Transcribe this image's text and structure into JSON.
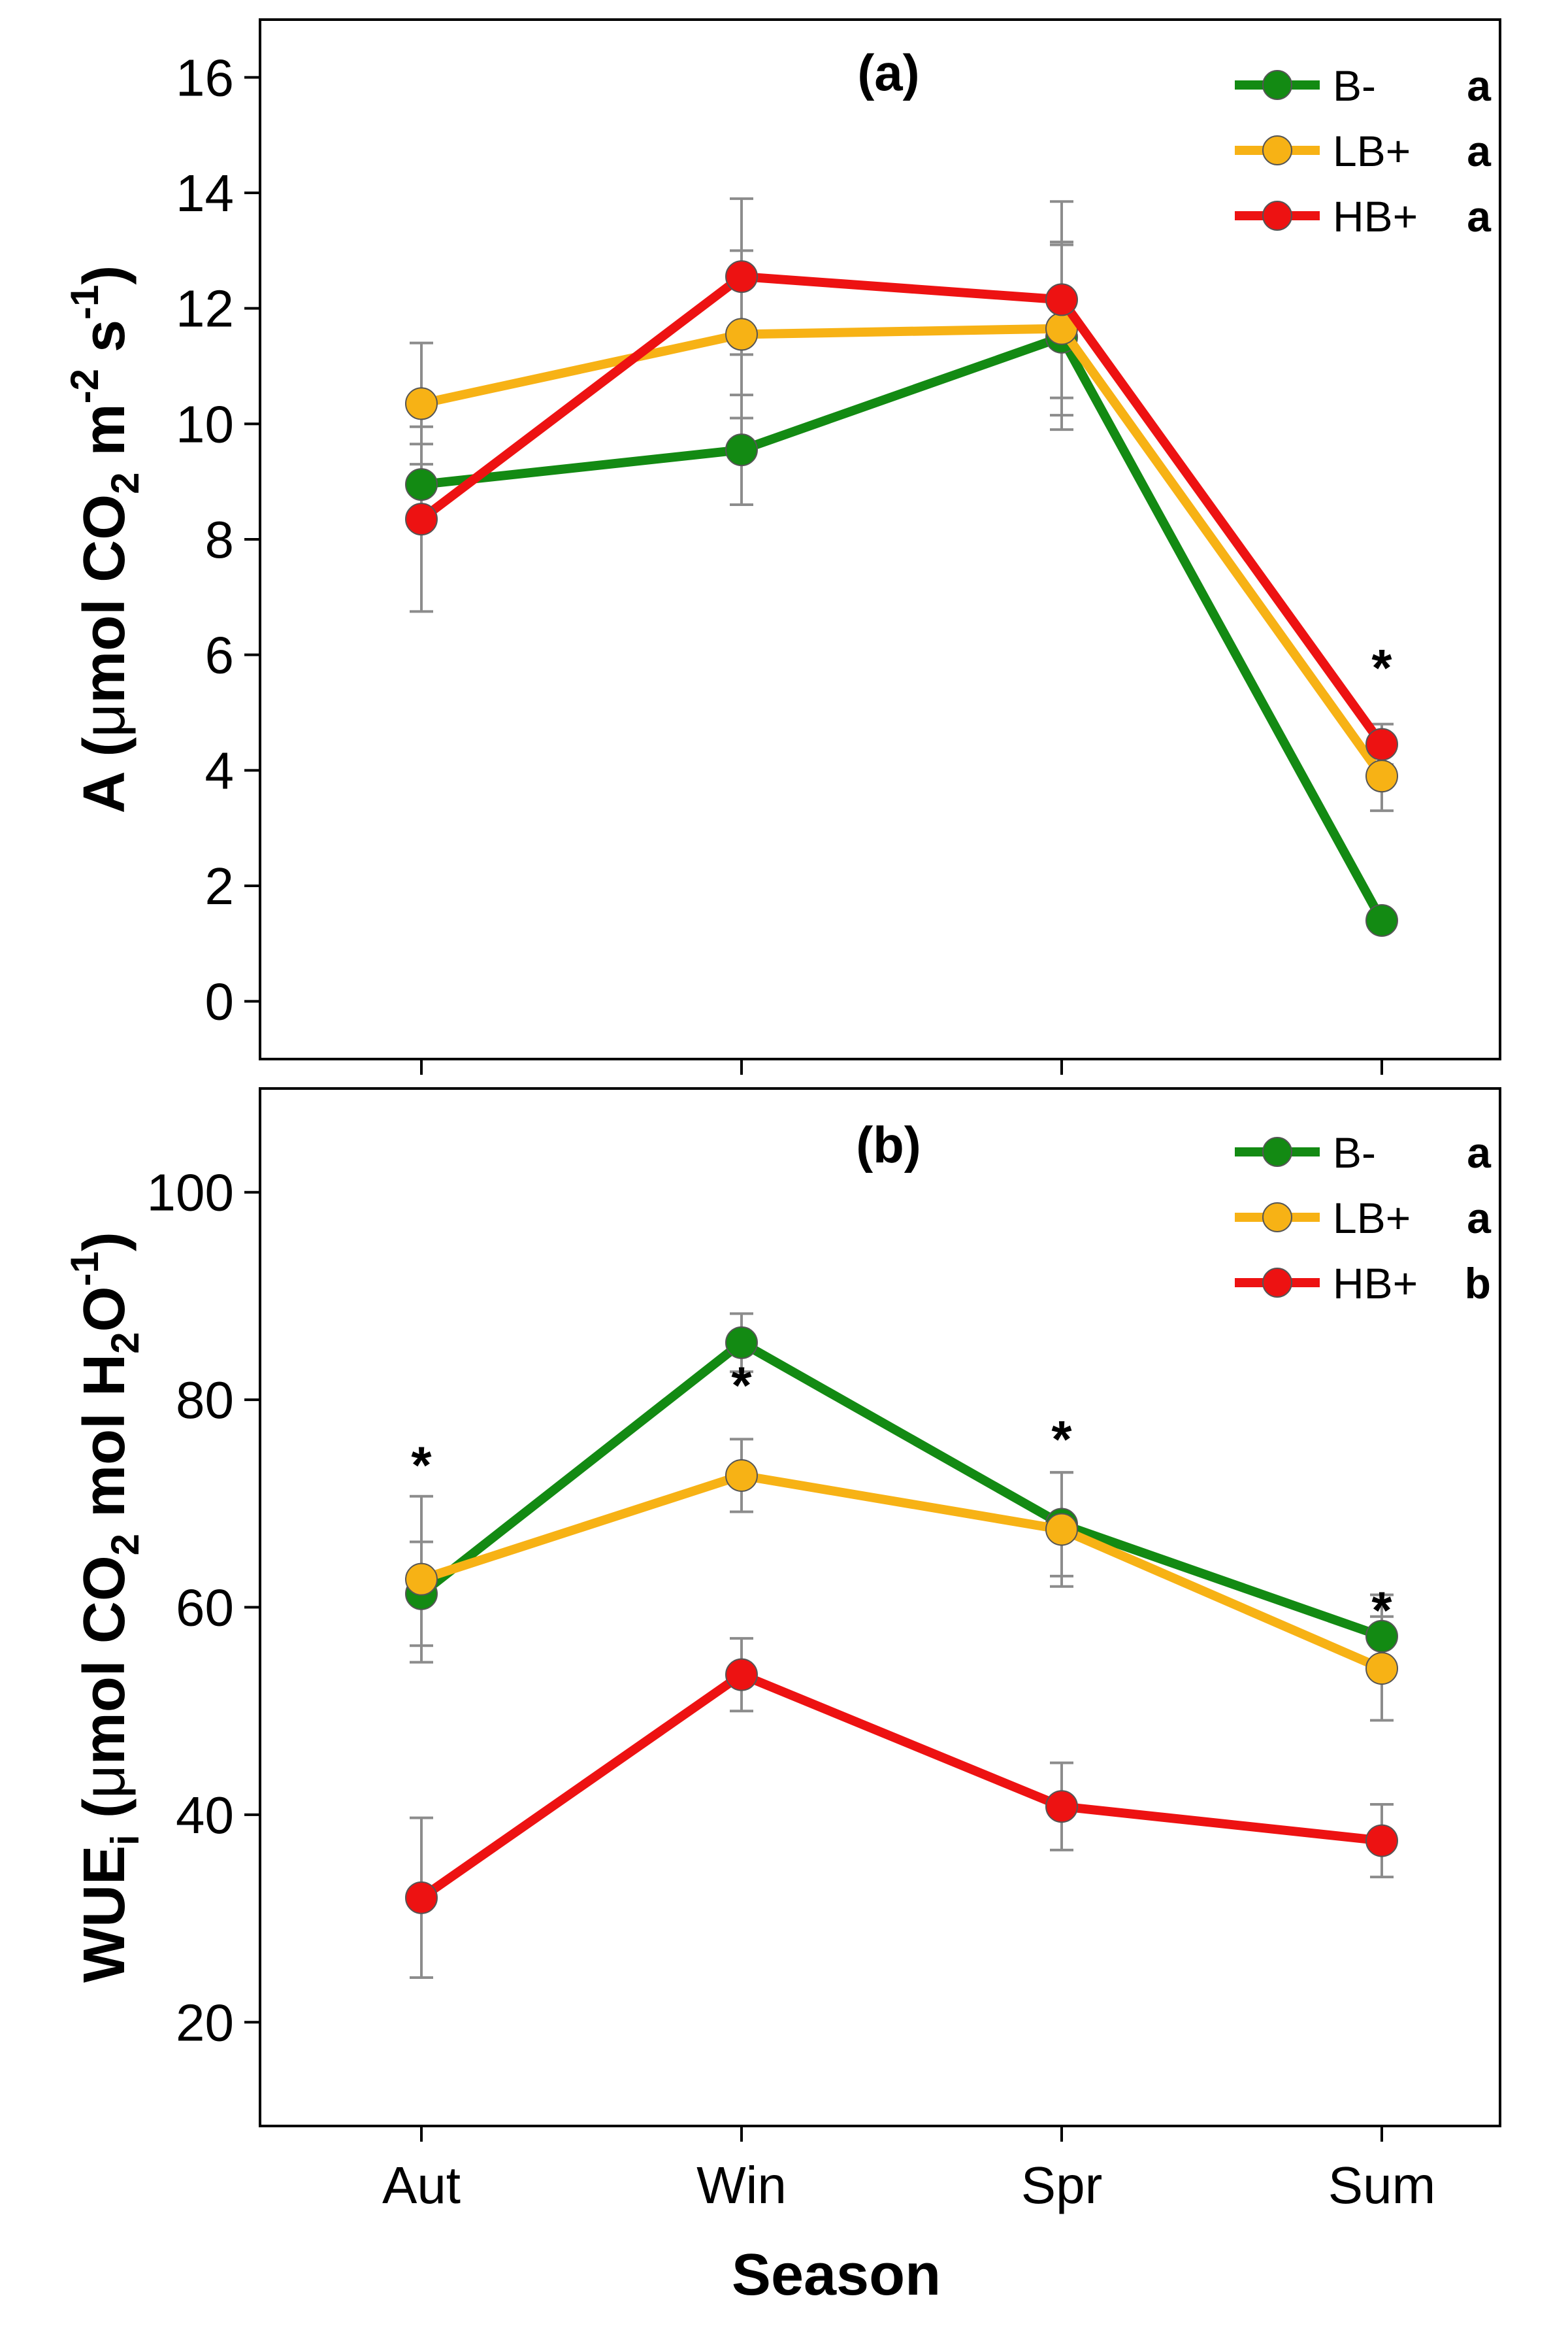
{
  "chart_data": [
    {
      "type": "line",
      "panel_label": "(a)",
      "xlabel": "Season",
      "ylabel": "A (μmol CO2 m-2 s-1)",
      "ylabel_parts": [
        "A (",
        "μ",
        "mol CO",
        "2",
        " m",
        "-2",
        " s",
        "-1",
        ")"
      ],
      "ylim": [
        -1,
        17
      ],
      "yticks": [
        "0",
        "2",
        "4",
        "6",
        "8",
        "10",
        "12",
        "14",
        "16"
      ],
      "categories": [
        "Aut",
        "Win",
        "Spr",
        "Sum"
      ],
      "series": [
        {
          "name": "B-",
          "letter": "a",
          "color": "#138a13",
          "values": [
            8.95,
            9.55,
            11.5,
            1.4
          ],
          "errors": [
            0.7,
            0.95,
            1.6,
            0.1
          ]
        },
        {
          "name": "LB+",
          "letter": "a",
          "color": "#f7b215",
          "values": [
            10.35,
            11.55,
            11.65,
            3.9
          ],
          "errors": [
            1.05,
            1.45,
            1.5,
            0.6
          ]
        },
        {
          "name": "HB+",
          "letter": "a",
          "color": "#ed1212",
          "values": [
            8.35,
            12.55,
            12.15,
            4.45
          ],
          "errors": [
            1.6,
            1.35,
            1.7,
            0.35
          ]
        }
      ],
      "annotations": [
        {
          "category": "Sum",
          "text": "*",
          "y": 6.1
        }
      ]
    },
    {
      "type": "line",
      "panel_label": "(b)",
      "xlabel": "Season",
      "ylabel": "WUEi (μmol CO2 mol H2O-1)",
      "ylabel_parts": [
        "WUE",
        "i",
        " (",
        "μ",
        "mol CO",
        "2",
        " mol H",
        "2",
        "O",
        "-1",
        ")"
      ],
      "ylim": [
        10,
        110
      ],
      "yticks": [
        "20",
        "40",
        "60",
        "80",
        "100"
      ],
      "categories": [
        "Aut",
        "Win",
        "Spr",
        "Sum"
      ],
      "series": [
        {
          "name": "B-",
          "letter": "a",
          "color": "#138a13",
          "values": [
            61.3,
            85.5,
            68.0,
            57.2
          ],
          "errors": [
            5.0,
            2.8,
            5.0,
            4.0
          ]
        },
        {
          "name": "LB+",
          "letter": "a",
          "color": "#f7b215",
          "values": [
            62.7,
            72.7,
            67.5,
            54.1
          ],
          "errors": [
            8.0,
            3.5,
            5.5,
            5.0
          ]
        },
        {
          "name": "HB+",
          "letter": "b",
          "color": "#ed1212",
          "values": [
            32.0,
            53.5,
            40.8,
            37.5
          ],
          "errors": [
            7.7,
            3.5,
            4.2,
            3.5
          ]
        }
      ],
      "annotations": [
        {
          "category": "Aut",
          "text": "*",
          "y": 75.5
        },
        {
          "category": "Win",
          "text": "*",
          "y": 83.2
        },
        {
          "category": "Spr",
          "text": "*",
          "y": 78.0
        },
        {
          "category": "Sum",
          "text": "*",
          "y": 61.5
        }
      ]
    }
  ]
}
